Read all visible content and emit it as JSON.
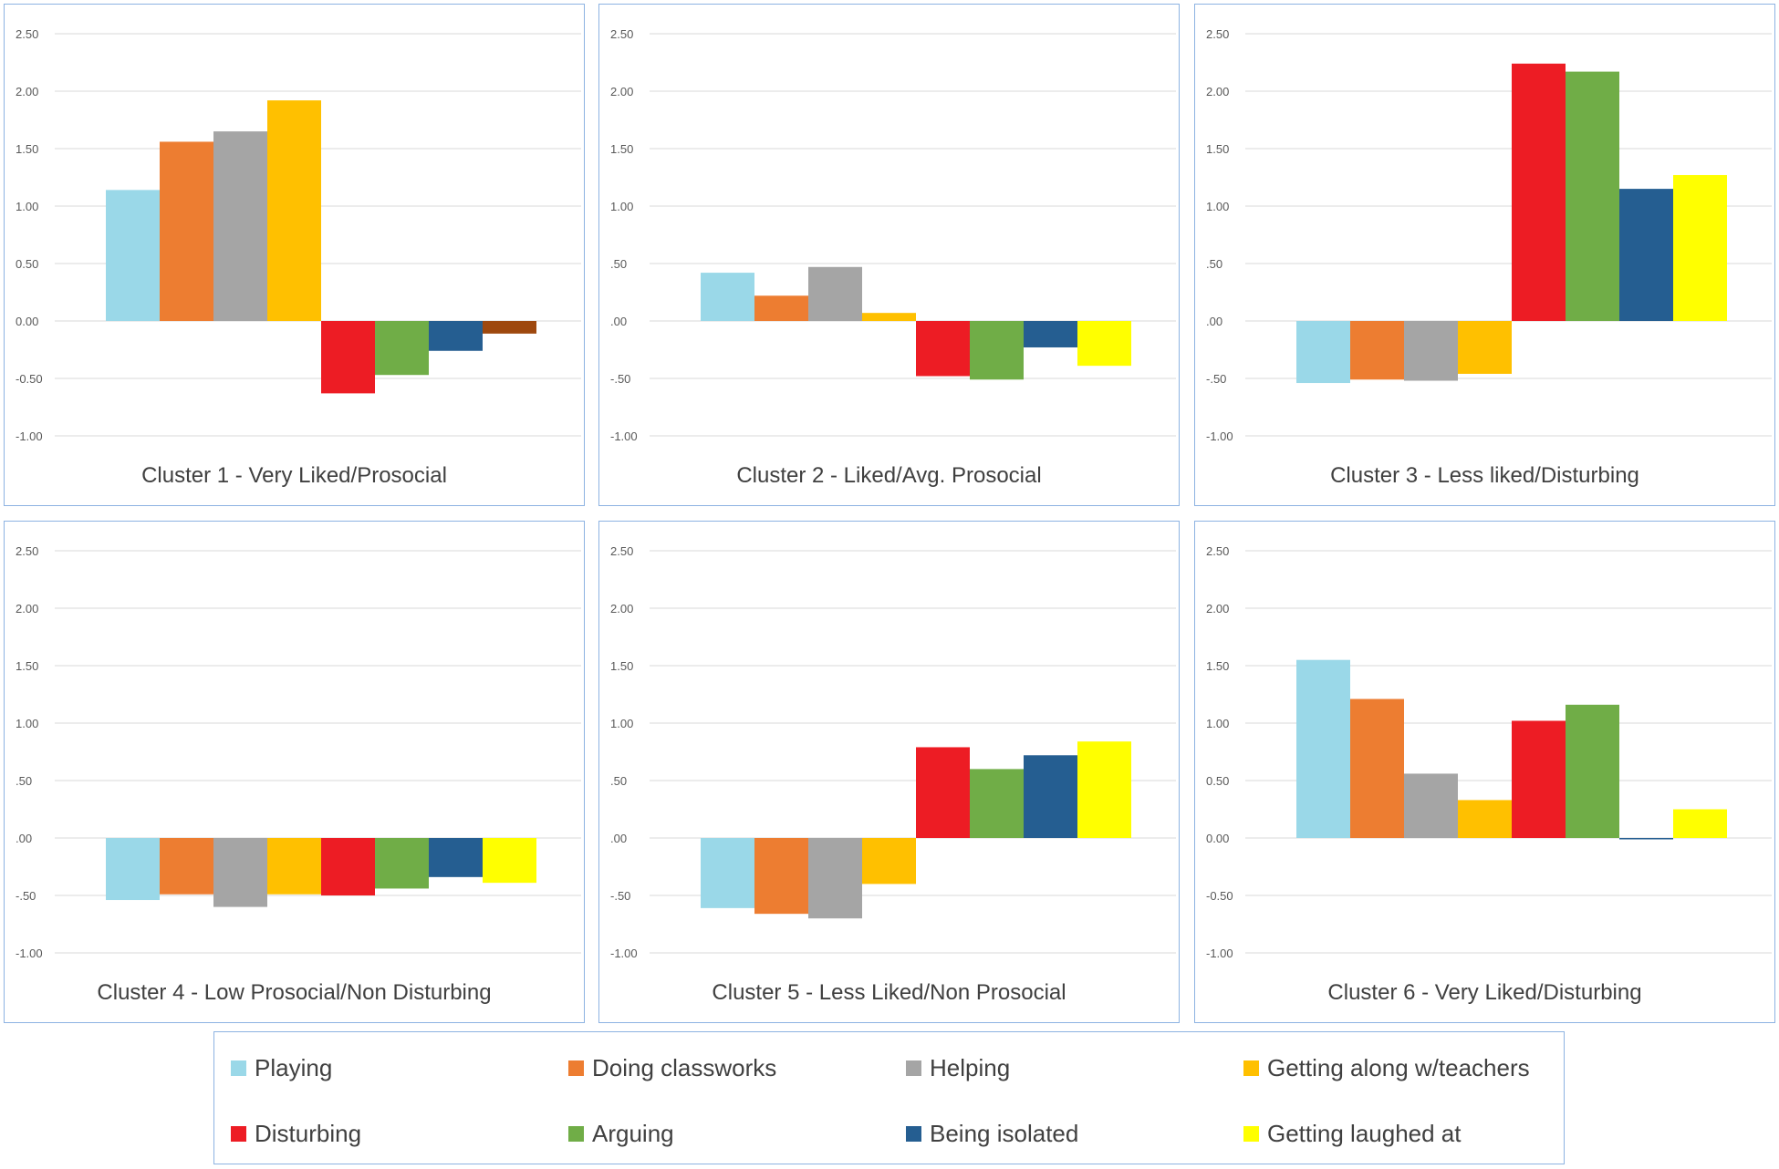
{
  "legend": [
    {
      "key": "playing",
      "label": "Playing",
      "color": "#9ad8e8"
    },
    {
      "key": "classworks",
      "label": "Doing classworks",
      "color": "#ed7d31"
    },
    {
      "key": "helping",
      "label": "Helping",
      "color": "#a5a5a5"
    },
    {
      "key": "teachers",
      "label": "Getting along w/teachers",
      "color": "#ffc000"
    },
    {
      "key": "disturbing",
      "label": "Disturbing",
      "color": "#ed1c24"
    },
    {
      "key": "arguing",
      "label": "Arguing",
      "color": "#70ad47"
    },
    {
      "key": "isolated",
      "label": "Being isolated",
      "color": "#255e91"
    },
    {
      "key": "laughed",
      "label": "Getting laughed at",
      "color": "#ffff00"
    }
  ],
  "chart_data": [
    {
      "type": "bar",
      "title": "Cluster 1 - Very Liked/Prosocial",
      "ylim": [
        -1.0,
        2.5
      ],
      "yticks": [
        "2.50",
        "2.00",
        "1.50",
        "1.00",
        "0.50",
        "0.00",
        "-0.50",
        "-1.00"
      ],
      "values": [
        1.14,
        1.56,
        1.65,
        1.92,
        -0.63,
        -0.47,
        -0.26,
        -0.11
      ],
      "colors": [
        "#9ad8e8",
        "#ed7d31",
        "#a5a5a5",
        "#ffc000",
        "#ed1c24",
        "#70ad47",
        "#255e91",
        "#9e480e"
      ]
    },
    {
      "type": "bar",
      "title": "Cluster 2 - Liked/Avg. Prosocial",
      "ylim": [
        -1.0,
        2.5
      ],
      "yticks": [
        "2.50",
        "2.00",
        "1.50",
        "1.00",
        ".50",
        ".00",
        "-.50",
        "-1.00"
      ],
      "values": [
        0.42,
        0.22,
        0.47,
        0.07,
        -0.48,
        -0.51,
        -0.23,
        -0.39
      ],
      "colors": [
        "#9ad8e8",
        "#ed7d31",
        "#a5a5a5",
        "#ffc000",
        "#ed1c24",
        "#70ad47",
        "#255e91",
        "#ffff00"
      ]
    },
    {
      "type": "bar",
      "title": "Cluster 3 - Less liked/Disturbing",
      "ylim": [
        -1.0,
        2.5
      ],
      "yticks": [
        "2.50",
        "2.00",
        "1.50",
        "1.00",
        ".50",
        ".00",
        "-.50",
        "-1.00"
      ],
      "values": [
        -0.54,
        -0.51,
        -0.52,
        -0.46,
        2.24,
        2.17,
        1.15,
        1.27
      ],
      "colors": [
        "#9ad8e8",
        "#ed7d31",
        "#a5a5a5",
        "#ffc000",
        "#ed1c24",
        "#70ad47",
        "#255e91",
        "#ffff00"
      ]
    },
    {
      "type": "bar",
      "title": "Cluster 4 - Low Prosocial/Non Disturbing",
      "ylim": [
        -1.0,
        2.5
      ],
      "yticks": [
        "2.50",
        "2.00",
        "1.50",
        "1.00",
        ".50",
        ".00",
        "-.50",
        "-1.00"
      ],
      "values": [
        -0.54,
        -0.49,
        -0.6,
        -0.49,
        -0.5,
        -0.44,
        -0.34,
        -0.39
      ],
      "colors": [
        "#9ad8e8",
        "#ed7d31",
        "#a5a5a5",
        "#ffc000",
        "#ed1c24",
        "#70ad47",
        "#255e91",
        "#ffff00"
      ]
    },
    {
      "type": "bar",
      "title": "Cluster 5 - Less Liked/Non Prosocial",
      "ylim": [
        -1.0,
        2.5
      ],
      "yticks": [
        "2.50",
        "2.00",
        "1.50",
        "1.00",
        ".50",
        ".00",
        "-.50",
        "-1.00"
      ],
      "values": [
        -0.61,
        -0.66,
        -0.7,
        -0.4,
        0.79,
        0.6,
        0.72,
        0.84
      ],
      "colors": [
        "#9ad8e8",
        "#ed7d31",
        "#a5a5a5",
        "#ffc000",
        "#ed1c24",
        "#70ad47",
        "#255e91",
        "#ffff00"
      ]
    },
    {
      "type": "bar",
      "title": "Cluster 6 - Very Liked/Disturbing",
      "ylim": [
        -1.0,
        2.5
      ],
      "yticks": [
        "2.50",
        "2.00",
        "1.50",
        "1.00",
        "0.50",
        "0.00",
        "-0.50",
        "-1.00"
      ],
      "values": [
        1.55,
        1.21,
        0.56,
        0.33,
        1.02,
        1.16,
        -0.01,
        0.25
      ],
      "colors": [
        "#9ad8e8",
        "#ed7d31",
        "#a5a5a5",
        "#ffc000",
        "#ed1c24",
        "#70ad47",
        "#255e91",
        "#ffff00"
      ]
    }
  ]
}
